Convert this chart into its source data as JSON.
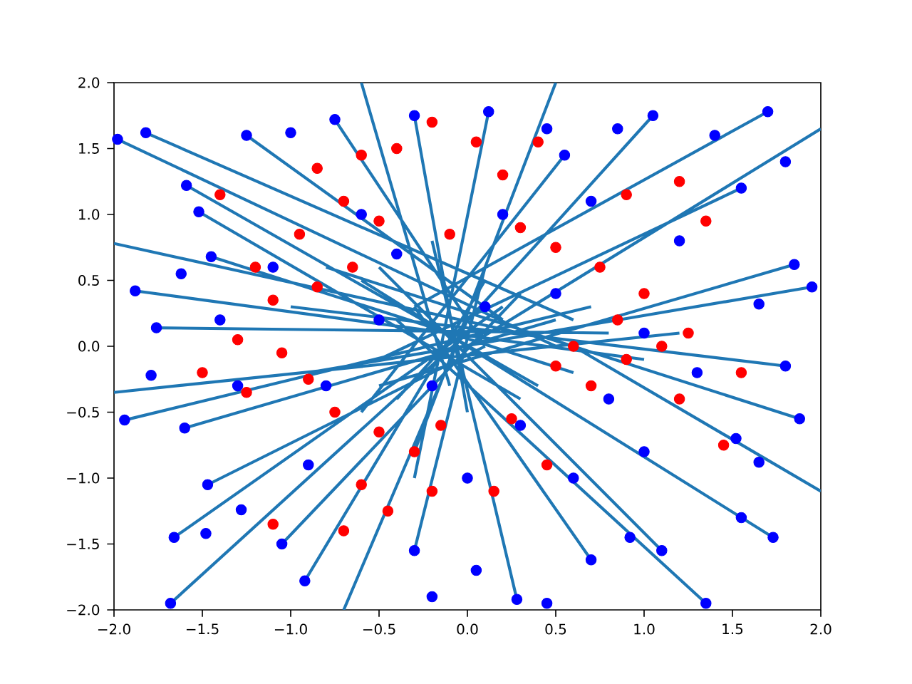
{
  "chart_data": {
    "type": "scatter",
    "xlim": [
      -2,
      2
    ],
    "ylim": [
      -2,
      2
    ],
    "xticks": [
      {
        "value": -2,
        "label": "−2.0"
      },
      {
        "value": -1.5,
        "label": "−1.5"
      },
      {
        "value": -1,
        "label": "−1.0"
      },
      {
        "value": -0.5,
        "label": "−0.5"
      },
      {
        "value": 0,
        "label": "0.0"
      },
      {
        "value": 0.5,
        "label": "0.5"
      },
      {
        "value": 1,
        "label": "1.0"
      },
      {
        "value": 1.5,
        "label": "1.5"
      },
      {
        "value": 2,
        "label": "2.0"
      }
    ],
    "yticks": [
      {
        "value": -2,
        "label": "−2.0"
      },
      {
        "value": -1.5,
        "label": "−1.5"
      },
      {
        "value": -1,
        "label": "−1.0"
      },
      {
        "value": -0.5,
        "label": "−0.5"
      },
      {
        "value": 0,
        "label": "0.0"
      },
      {
        "value": 0.5,
        "label": "0.5"
      },
      {
        "value": 1,
        "label": "1.0"
      },
      {
        "value": 1.5,
        "label": "1.5"
      },
      {
        "value": 2,
        "label": "2.0"
      }
    ],
    "marker": "circle",
    "series": [
      {
        "color": "#ff0000",
        "x": [
          -0.85,
          -0.6,
          -0.4,
          -0.2,
          -0.7,
          -0.5,
          -0.95,
          -1.2,
          -1.1,
          -0.85,
          -0.65,
          -1.3,
          -1.05,
          -1.25,
          -0.9,
          -0.75,
          -0.5,
          -0.3,
          -0.15,
          -0.6,
          -0.45,
          -0.7,
          -1.1,
          -0.2,
          0.25,
          0.15,
          0.45,
          0.7,
          0.9,
          1.1,
          1.25,
          0.85,
          0.6,
          1.0,
          0.75,
          0.5,
          0.3,
          0.2,
          0.05,
          0.9,
          1.2,
          1.35,
          1.55,
          0.5,
          1.2,
          1.45,
          -0.1,
          -1.5,
          -1.4,
          0.4
        ],
        "values": [
          1.35,
          1.45,
          1.5,
          1.7,
          1.1,
          0.95,
          0.85,
          0.6,
          0.35,
          0.45,
          0.6,
          0.05,
          -0.05,
          -0.35,
          -0.25,
          -0.5,
          -0.65,
          -0.8,
          -0.6,
          -1.05,
          -1.25,
          -1.4,
          -1.35,
          -1.1,
          -0.55,
          -1.1,
          -0.9,
          -0.3,
          -0.1,
          0.0,
          0.1,
          0.2,
          0.0,
          0.4,
          0.6,
          0.75,
          0.9,
          1.3,
          1.55,
          1.15,
          1.25,
          0.95,
          -0.2,
          -0.15,
          -0.4,
          -0.75,
          0.85,
          -0.2,
          1.15,
          1.55
        ]
      },
      {
        "color": "#0000ff",
        "x": [
          -1.98,
          -1.82,
          -1.59,
          -1.52,
          -1.45,
          -1.62,
          -1.88,
          -1.76,
          -1.94,
          -1.79,
          -1.6,
          -1.66,
          -1.47,
          -1.28,
          -1.48,
          -1.68,
          -1.05,
          -0.92,
          -0.3,
          -0.2,
          0.05,
          0.28,
          0.45,
          0.7,
          0.92,
          1.1,
          1.35,
          1.55,
          1.73,
          1.65,
          1.88,
          1.52,
          1.8,
          1.95,
          1.85,
          1.65,
          1.55,
          1.7,
          1.8,
          1.4,
          1.05,
          0.85,
          0.55,
          0.45,
          0.12,
          -0.3,
          -0.75,
          -1.0,
          -1.25,
          -0.5,
          0.1,
          0.5,
          1.0,
          -0.2,
          0.3,
          0.8,
          -0.8,
          -1.1,
          -0.6,
          0.2,
          1.2,
          1.3,
          -1.3,
          -0.9,
          0.0,
          0.6,
          1.0,
          -0.4,
          0.7,
          -1.4
        ],
        "values": [
          1.57,
          1.62,
          1.22,
          1.02,
          0.68,
          0.55,
          0.42,
          0.14,
          -0.56,
          -0.22,
          -0.62,
          -1.45,
          -1.05,
          -1.24,
          -1.42,
          -1.95,
          -1.5,
          -1.78,
          -1.55,
          -1.9,
          -1.7,
          -1.92,
          -1.95,
          -1.62,
          -1.45,
          -1.55,
          -1.95,
          -1.3,
          -1.45,
          -0.88,
          -0.55,
          -0.7,
          -0.15,
          0.45,
          0.62,
          0.32,
          1.2,
          1.78,
          1.4,
          1.6,
          1.75,
          1.65,
          1.45,
          1.65,
          1.78,
          1.75,
          1.72,
          1.62,
          1.6,
          0.2,
          0.3,
          0.4,
          0.1,
          -0.3,
          -0.6,
          -0.4,
          -0.3,
          0.6,
          1.0,
          1.0,
          0.8,
          -0.2,
          -0.3,
          -0.9,
          -1.0,
          -1.0,
          -0.8,
          0.7,
          1.1,
          0.2
        ]
      },
      {
        "type": "line",
        "color": "#1f77b4",
        "marker": "none",
        "x": [
          -1.98,
          0.5,
          null,
          -1.82,
          0.6,
          null,
          -1.59,
          0.4,
          null,
          -1.52,
          0.3,
          null,
          -1.45,
          0.6,
          null,
          -1.88,
          1.0,
          null,
          -1.76,
          0.8,
          null,
          -1.94,
          0.7,
          null,
          -1.6,
          0.5,
          null,
          -1.66,
          0.2,
          null,
          -1.47,
          0.1,
          null,
          -1.68,
          0.0,
          null,
          -1.05,
          0.3,
          null,
          -0.92,
          0.1,
          null,
          -0.3,
          0.1,
          null,
          0.28,
          -0.2,
          null,
          0.7,
          -0.3,
          null,
          1.1,
          -0.5,
          null,
          1.35,
          -0.4,
          null,
          1.73,
          -0.6,
          null,
          1.88,
          -0.8,
          null,
          1.8,
          -1.0,
          null,
          1.95,
          -0.9,
          null,
          1.85,
          -0.5,
          null,
          1.7,
          -0.3,
          null,
          1.55,
          -0.5,
          null,
          1.05,
          -0.4,
          null,
          0.55,
          -0.6,
          null,
          0.12,
          -0.3,
          null,
          -0.3,
          0.0,
          null,
          -0.75,
          0.1,
          null,
          -1.25,
          0.2,
          null,
          -2.0,
          0.3,
          null,
          2.0,
          0.0,
          null,
          -2.0,
          1.2,
          null,
          -0.6,
          -0.1,
          null,
          0.5,
          -0.3,
          null,
          -0.7,
          0.0,
          null,
          2.0,
          0.6
        ],
        "values": [
          1.57,
          0.0,
          null,
          1.62,
          0.2,
          null,
          1.22,
          -0.3,
          null,
          1.02,
          -0.4,
          null,
          0.68,
          -0.2,
          null,
          0.42,
          -0.1,
          null,
          0.14,
          0.1,
          null,
          -0.56,
          0.3,
          null,
          -0.62,
          0.2,
          null,
          -1.45,
          0.3,
          null,
          -1.05,
          0.0,
          null,
          -1.95,
          0.1,
          null,
          -1.5,
          0.4,
          null,
          -1.78,
          0.5,
          null,
          -1.55,
          0.6,
          null,
          -1.92,
          0.8,
          null,
          -1.62,
          0.3,
          null,
          -1.55,
          0.6,
          null,
          -1.95,
          0.2,
          null,
          -1.45,
          0.5,
          null,
          -0.55,
          0.6,
          null,
          -0.15,
          0.3,
          null,
          0.45,
          -0.2,
          null,
          0.62,
          -0.3,
          null,
          1.78,
          0.3,
          null,
          1.2,
          -0.1,
          null,
          1.75,
          -0.4,
          null,
          1.45,
          -0.5,
          null,
          1.78,
          -1.0,
          null,
          1.75,
          -0.5,
          null,
          1.72,
          0.0,
          null,
          1.6,
          0.2,
          null,
          0.78,
          0.1,
          null,
          1.65,
          0.0,
          null,
          -0.35,
          0.1,
          null,
          2.0,
          -0.3,
          null,
          2.0,
          -0.8,
          null,
          -2.0,
          0.2,
          null,
          -1.1,
          0.0
        ]
      }
    ]
  }
}
